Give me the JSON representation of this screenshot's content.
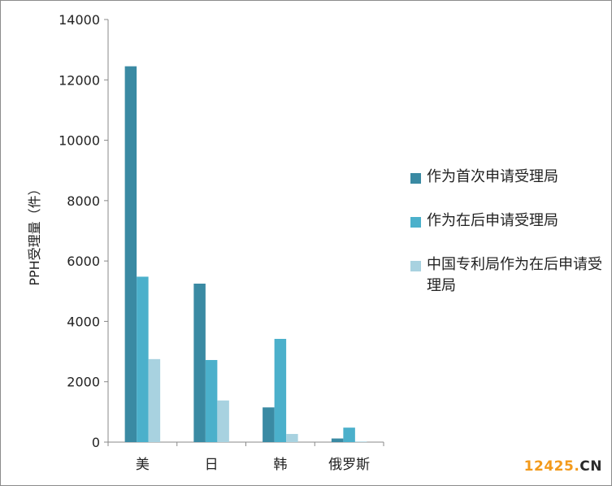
{
  "chart_data": {
    "type": "bar",
    "categories": [
      "美",
      "日",
      "韩",
      "俄罗斯"
    ],
    "series": [
      {
        "name": "作为首次申请受理局",
        "values": [
          12450,
          5250,
          1150,
          120
        ],
        "color": "#3a8aa3"
      },
      {
        "name": "作为在后申请受理局",
        "values": [
          5480,
          2720,
          3420,
          480
        ],
        "color": "#4bb0cb"
      },
      {
        "name": "中国专利局作为在后申请受理局",
        "values": [
          2750,
          1380,
          270,
          20
        ],
        "color": "#a8d2e0"
      }
    ],
    "ylabel": "PPH受理量（件）",
    "ylim": [
      0,
      14000
    ],
    "yticks": [
      "0",
      "2000",
      "4000",
      "6000",
      "8000",
      "10000",
      "12000",
      "14000"
    ],
    "legend_position": "right",
    "grid": false
  },
  "legend": {
    "item1": "作为首次申请受理局",
    "item2": "作为在后申请受理局",
    "item3": "中国专利局作为在后申请受理局"
  },
  "watermark": {
    "number": "12425",
    "suffix": "CN"
  }
}
